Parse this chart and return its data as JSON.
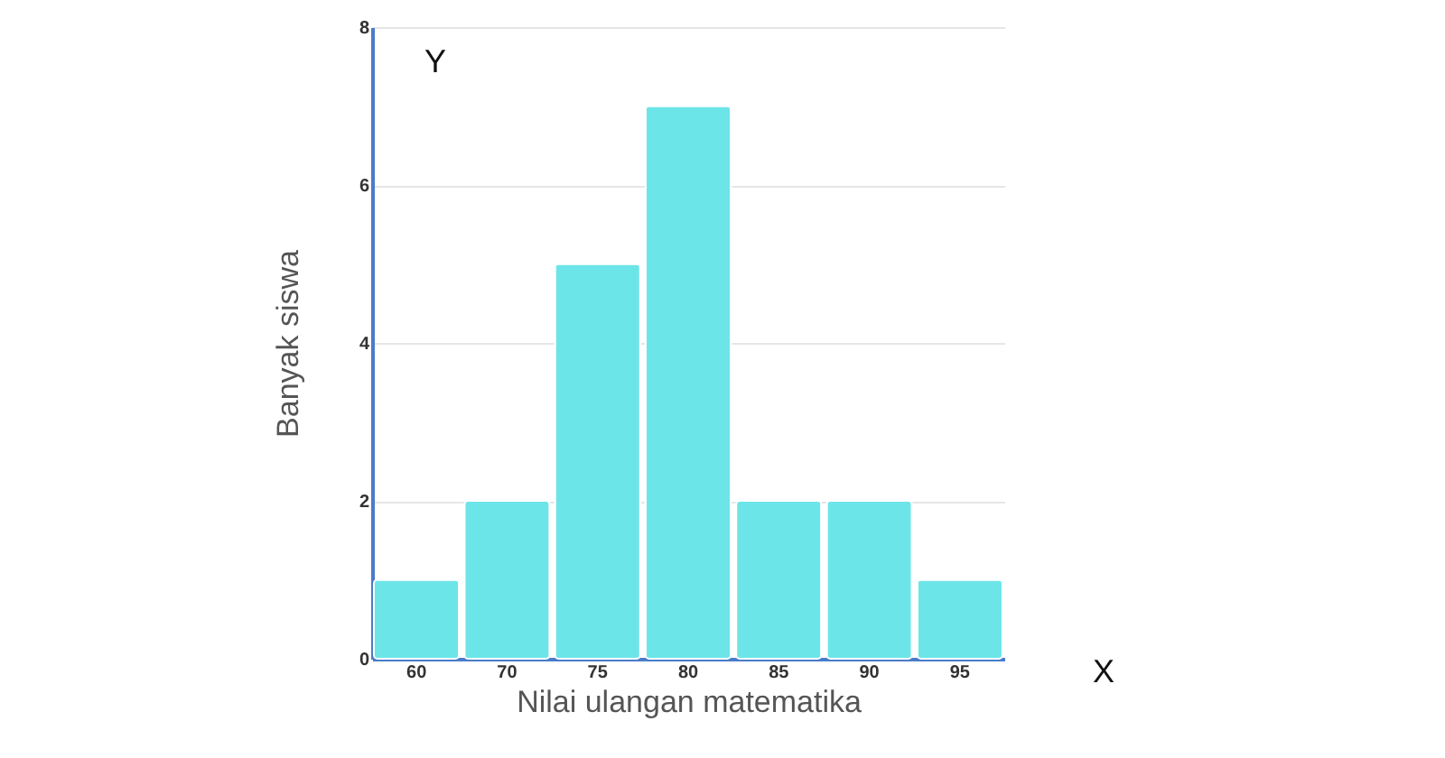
{
  "chart_data": {
    "type": "bar",
    "xlabel": "Nilai ulangan matematika",
    "ylabel": "Banyak siswa",
    "categories": [
      "60",
      "70",
      "75",
      "80",
      "85",
      "90",
      "95"
    ],
    "values": [
      1,
      2,
      5,
      7,
      2,
      2,
      1
    ],
    "color": "#6ce5e8",
    "ylim": [
      0,
      8
    ],
    "yticks": [
      0,
      2,
      4,
      6,
      8
    ],
    "grid": "y",
    "annotations": [
      "Y",
      "X"
    ]
  }
}
